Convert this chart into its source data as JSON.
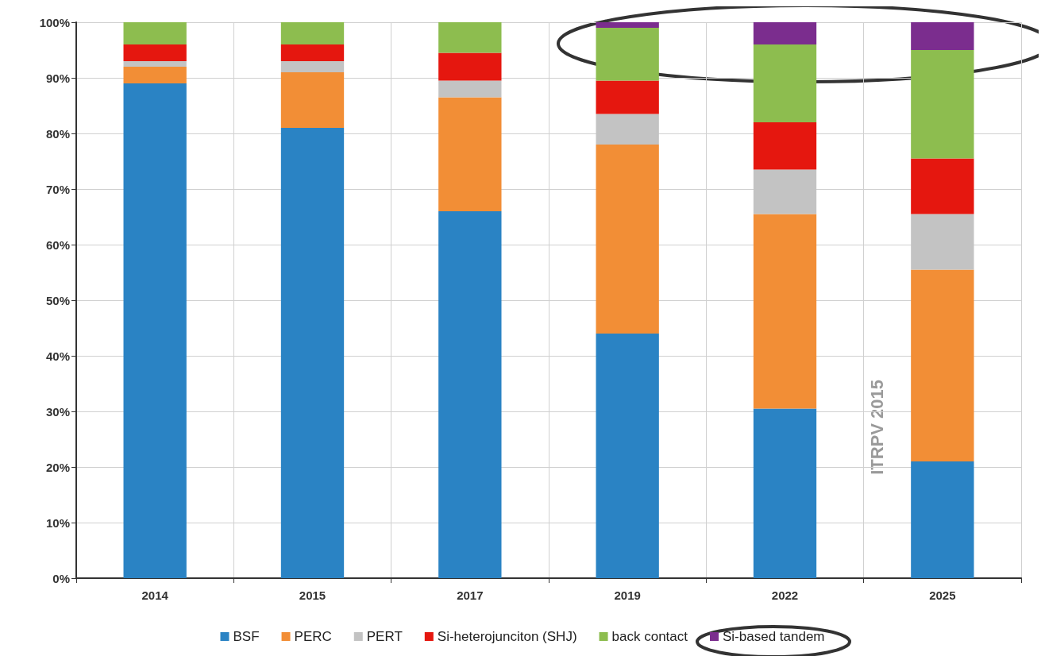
{
  "chart_data": {
    "type": "bar",
    "stacked": true,
    "categories": [
      "2014",
      "2015",
      "2017",
      "2019",
      "2022",
      "2025"
    ],
    "series": [
      {
        "name": "BSF",
        "color": "#2a83c4",
        "values": [
          89,
          81,
          66,
          44,
          30.5,
          21
        ]
      },
      {
        "name": "PERC",
        "color": "#f28e36",
        "values": [
          3,
          10,
          20.5,
          34,
          35,
          34.5
        ]
      },
      {
        "name": "PERT",
        "color": "#c3c3c3",
        "values": [
          1,
          2,
          3,
          5.5,
          8,
          10
        ]
      },
      {
        "name": "Si-heterojunciton (SHJ)",
        "color": "#e5170f",
        "values": [
          3,
          3,
          5,
          6,
          8.5,
          10
        ]
      },
      {
        "name": "back contact",
        "color": "#8dbd4f",
        "values": [
          4,
          4,
          5.5,
          9.5,
          14,
          19.5
        ]
      },
      {
        "name": "Si-based tandem",
        "color": "#7b2d8e",
        "values": [
          0,
          0,
          0,
          1,
          4,
          5
        ]
      }
    ],
    "ylim": [
      0,
      100
    ],
    "yticks": [
      {
        "value": 0,
        "label": "0%"
      },
      {
        "value": 10,
        "label": "10%"
      },
      {
        "value": 20,
        "label": "20%"
      },
      {
        "value": 30,
        "label": "30%"
      },
      {
        "value": 40,
        "label": "40%"
      },
      {
        "value": 50,
        "label": "50%"
      },
      {
        "value": 60,
        "label": "60%"
      },
      {
        "value": 70,
        "label": "70%"
      },
      {
        "value": 80,
        "label": "80%"
      },
      {
        "value": 90,
        "label": "90%"
      },
      {
        "value": 100,
        "label": "100%"
      }
    ],
    "grid": true,
    "legend": "bottom",
    "annotations": [
      "ITRPV 2015"
    ]
  }
}
